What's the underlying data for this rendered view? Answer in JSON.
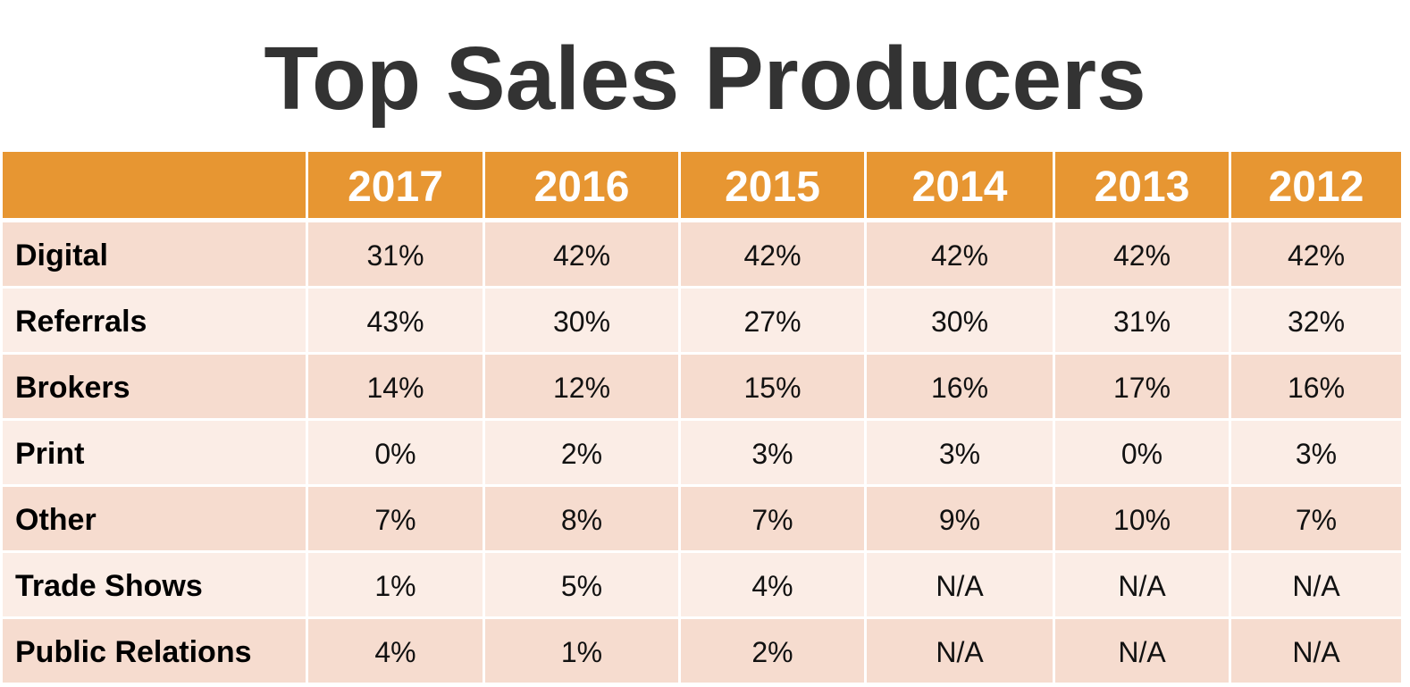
{
  "title": "Top Sales Producers",
  "colors": {
    "header_bg": "#e79632",
    "row_dark": "#f6dccf",
    "row_light": "#fbede6",
    "title_text": "#333333"
  },
  "table": {
    "corner": "",
    "years": [
      "2017",
      "2016",
      "2015",
      "2014",
      "2013",
      "2012"
    ],
    "rows": [
      {
        "label": "Digital",
        "values": [
          "31%",
          "42%",
          "42%",
          "42%",
          "42%",
          "42%"
        ]
      },
      {
        "label": "Referrals",
        "values": [
          "43%",
          "30%",
          "27%",
          "30%",
          "31%",
          "32%"
        ]
      },
      {
        "label": "Brokers",
        "values": [
          "14%",
          "12%",
          "15%",
          "16%",
          "17%",
          "16%"
        ]
      },
      {
        "label": "Print",
        "values": [
          "0%",
          "2%",
          "3%",
          "3%",
          "0%",
          "3%"
        ]
      },
      {
        "label": "Other",
        "values": [
          "7%",
          "8%",
          "7%",
          "9%",
          "10%",
          "7%"
        ]
      },
      {
        "label": "Trade Shows",
        "values": [
          "1%",
          "5%",
          "4%",
          "N/A",
          "N/A",
          "N/A"
        ]
      },
      {
        "label": "Public Relations",
        "values": [
          "4%",
          "1%",
          "2%",
          "N/A",
          "N/A",
          "N/A"
        ]
      }
    ]
  }
}
